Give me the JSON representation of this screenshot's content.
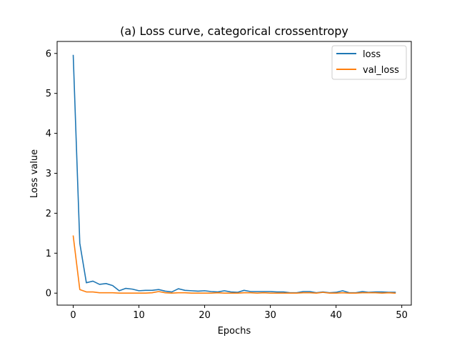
{
  "chart_data": {
    "type": "line",
    "title": "(a) Loss curve, categorical crossentropy",
    "xlabel": "Epochs",
    "ylabel": "Loss value",
    "xlim": [
      -2.45,
      51.45
    ],
    "ylim": [
      -0.3,
      6.3
    ],
    "xticks": [
      0,
      10,
      20,
      30,
      40,
      50
    ],
    "yticks": [
      0,
      1,
      2,
      3,
      4,
      5,
      6
    ],
    "grid": false,
    "legend_position": "top-right",
    "x": [
      0,
      1,
      2,
      3,
      4,
      5,
      6,
      7,
      8,
      9,
      10,
      11,
      12,
      13,
      14,
      15,
      16,
      17,
      18,
      19,
      20,
      21,
      22,
      23,
      24,
      25,
      26,
      27,
      28,
      29,
      30,
      31,
      32,
      33,
      34,
      35,
      36,
      37,
      38,
      39,
      40,
      41,
      42,
      43,
      44,
      45,
      46,
      47,
      48,
      49
    ],
    "series": [
      {
        "name": "loss",
        "color": "#1f77b4",
        "values": [
          5.95,
          1.25,
          0.26,
          0.3,
          0.22,
          0.24,
          0.19,
          0.06,
          0.12,
          0.1,
          0.06,
          0.07,
          0.07,
          0.09,
          0.05,
          0.03,
          0.11,
          0.07,
          0.06,
          0.05,
          0.06,
          0.04,
          0.03,
          0.06,
          0.03,
          0.02,
          0.07,
          0.04,
          0.04,
          0.04,
          0.04,
          0.03,
          0.03,
          0.01,
          0.01,
          0.04,
          0.04,
          0.01,
          0.03,
          0.01,
          0.02,
          0.06,
          0.01,
          0.01,
          0.04,
          0.02,
          0.03,
          0.03,
          0.02,
          0.02
        ]
      },
      {
        "name": "val_loss",
        "color": "#ff7f0e",
        "values": [
          1.43,
          0.09,
          0.03,
          0.03,
          0.01,
          0.01,
          0.01,
          0.0,
          0.0,
          0.0,
          0.0,
          0.0,
          0.01,
          0.04,
          0.01,
          0.0,
          0.01,
          0.01,
          0.0,
          0.0,
          0.0,
          0.0,
          0.01,
          0.0,
          0.0,
          0.0,
          0.01,
          0.01,
          0.0,
          0.01,
          0.0,
          0.0,
          0.0,
          0.0,
          0.0,
          0.01,
          0.01,
          0.0,
          0.02,
          0.0,
          0.0,
          0.01,
          0.0,
          0.0,
          0.01,
          0.01,
          0.01,
          0.0,
          0.01,
          0.0
        ]
      }
    ]
  }
}
